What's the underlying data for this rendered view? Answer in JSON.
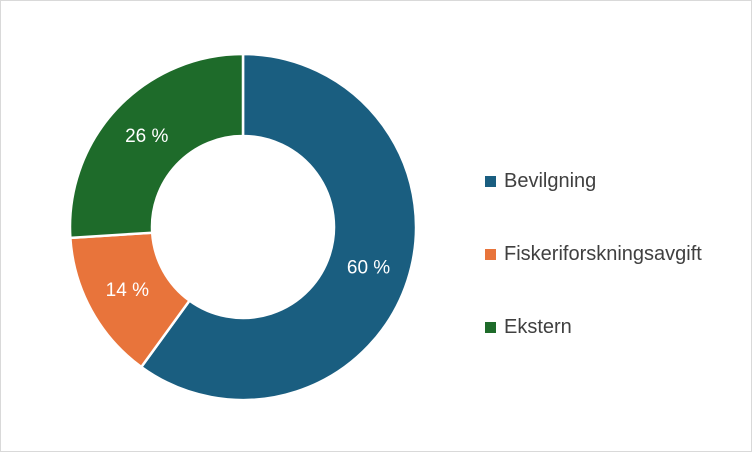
{
  "chart_data": {
    "type": "pie",
    "variant": "donut",
    "title": "",
    "categories": [
      "Bevilgning",
      "Fiskeriforskningsavgift",
      "Ekstern"
    ],
    "values": [
      60,
      14,
      26
    ],
    "data_labels": [
      "60 %",
      "14 %",
      "26 %"
    ],
    "colors": [
      "#1a5e80",
      "#e8743b",
      "#1e6b2a"
    ],
    "legend_position": "right"
  }
}
